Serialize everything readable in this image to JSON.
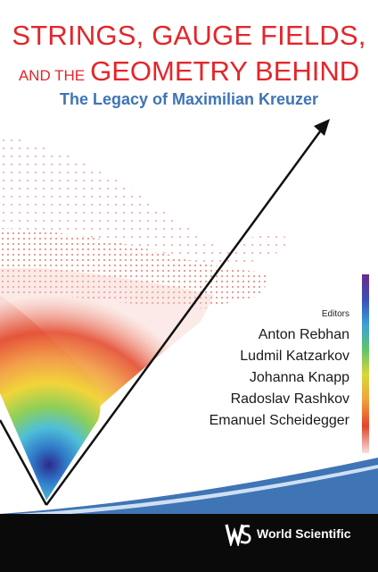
{
  "cover": {
    "title_line1": "STRINGS, GAUGE FIELDS,",
    "title_line2_small": "AND THE",
    "title_line2_big": "GEOMETRY BEHIND",
    "subtitle": "The Legacy of Maximilian Kreuzer",
    "editors_label": "Editors",
    "editors": [
      "Anton Rebhan",
      "Ludmil Katzarkov",
      "Johanna Knapp",
      "Radoslav Rashkov",
      "Emanuel Scheidegger"
    ],
    "publisher": "World Scientific",
    "colors": {
      "title": "#e3262b",
      "subtitle": "#3f74b5",
      "footer": "#0a0a0a",
      "wave": "#3f74b5"
    },
    "icons": [
      "ws-logo-icon",
      "arrow-icon"
    ]
  }
}
